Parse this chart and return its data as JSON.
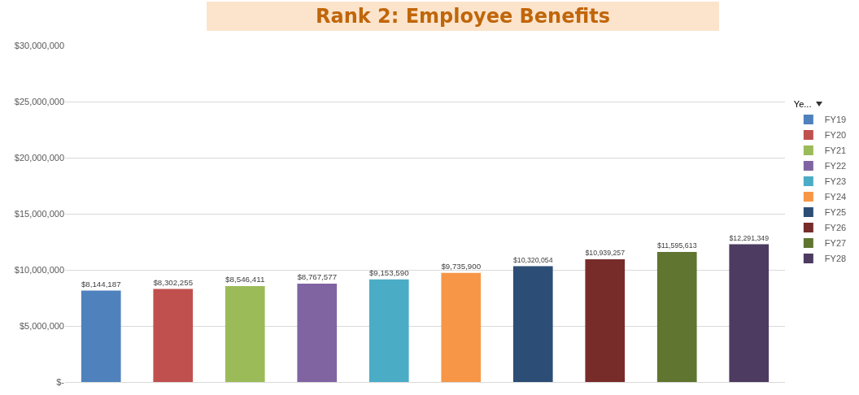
{
  "chart_data": {
    "type": "bar",
    "title": "Rank 2: Employee Benefits",
    "legend_title": "Ye...",
    "categories": [
      null,
      null,
      null,
      null,
      null,
      null,
      null,
      null,
      null,
      null
    ],
    "series": [
      {
        "name": "FY19",
        "color": "#4f81bd",
        "values": [
          8144187,
          null,
          null,
          null,
          null,
          null,
          null,
          null,
          null,
          null
        ],
        "value_labels": [
          "$8,144,187",
          null,
          null,
          null,
          null,
          null,
          null,
          null,
          null,
          null
        ]
      },
      {
        "name": "FY20",
        "color": "#c0504d",
        "values": [
          null,
          8302255,
          null,
          null,
          null,
          null,
          null,
          null,
          null,
          null
        ],
        "value_labels": [
          null,
          "$8,302,255",
          null,
          null,
          null,
          null,
          null,
          null,
          null,
          null
        ]
      },
      {
        "name": "FY21",
        "color": "#9bbb59",
        "values": [
          null,
          null,
          8546411,
          null,
          null,
          null,
          null,
          null,
          null,
          null
        ],
        "value_labels": [
          null,
          null,
          "$8,546,411",
          null,
          null,
          null,
          null,
          null,
          null,
          null
        ]
      },
      {
        "name": "FY22",
        "color": "#8064a2",
        "values": [
          null,
          null,
          null,
          8767577,
          null,
          null,
          null,
          null,
          null,
          null
        ],
        "value_labels": [
          null,
          null,
          null,
          "$8,767,577",
          null,
          null,
          null,
          null,
          null,
          null
        ]
      },
      {
        "name": "FY23",
        "color": "#4bacc6",
        "values": [
          null,
          null,
          null,
          null,
          9153590,
          null,
          null,
          null,
          null,
          null
        ],
        "value_labels": [
          null,
          null,
          null,
          null,
          "$9,153,590",
          null,
          null,
          null,
          null,
          null
        ]
      },
      {
        "name": "FY24",
        "color": "#f79646",
        "values": [
          null,
          null,
          null,
          null,
          null,
          9735900,
          null,
          null,
          null,
          null
        ],
        "value_labels": [
          null,
          null,
          null,
          null,
          null,
          "$9,735,900",
          null,
          null,
          null,
          null
        ]
      },
      {
        "name": "FY25",
        "color": "#2c4d75",
        "values": [
          null,
          null,
          null,
          null,
          null,
          null,
          10320054,
          null,
          null,
          null
        ],
        "value_labels": [
          null,
          null,
          null,
          null,
          null,
          null,
          "$10,320,054",
          null,
          null,
          null
        ]
      },
      {
        "name": "FY26",
        "color": "#772c2a",
        "values": [
          null,
          null,
          null,
          null,
          null,
          null,
          null,
          10939257,
          null,
          null
        ],
        "value_labels": [
          null,
          null,
          null,
          null,
          null,
          null,
          null,
          "$10,939,257",
          null,
          null
        ]
      },
      {
        "name": "FY27",
        "color": "#5f7530",
        "values": [
          null,
          null,
          null,
          null,
          null,
          null,
          null,
          null,
          11595613,
          null
        ],
        "value_labels": [
          null,
          null,
          null,
          null,
          null,
          null,
          null,
          null,
          "$11,595,613",
          null
        ]
      },
      {
        "name": "FY28",
        "color": "#4d3b62",
        "values": [
          null,
          null,
          null,
          null,
          null,
          null,
          null,
          null,
          null,
          12291349
        ],
        "value_labels": [
          null,
          null,
          null,
          null,
          null,
          null,
          null,
          null,
          null,
          "$12,291,349"
        ]
      }
    ],
    "ylim": [
      0,
      30000000
    ],
    "yticks": [
      {
        "value": 0,
        "label": "$-"
      },
      {
        "value": 5000000,
        "label": "$5,000,000"
      },
      {
        "value": 10000000,
        "label": "$10,000,000"
      },
      {
        "value": 15000000,
        "label": "$15,000,000"
      },
      {
        "value": 20000000,
        "label": "$20,000,000"
      },
      {
        "value": 25000000,
        "label": "$25,000,000"
      },
      {
        "value": 30000000,
        "label": "$30,000,000"
      }
    ],
    "grid": "y",
    "legend": "right"
  }
}
